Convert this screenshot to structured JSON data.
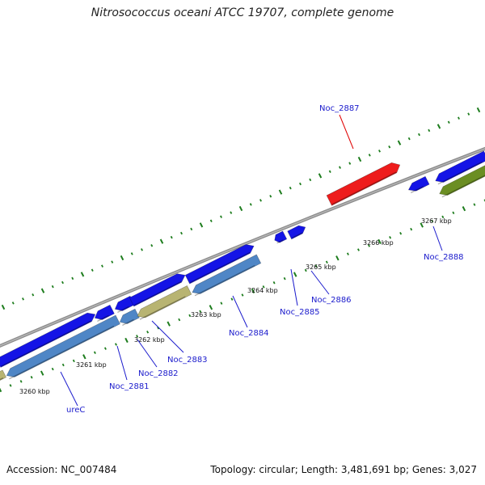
{
  "title": "Nitrosococcus oceani ATCC 19707, complete genome",
  "footer": {
    "accession": "Accession: NC_007484",
    "summary": "Topology: circular; Length: 3,481,691 bp; Genes: 3,027"
  },
  "scale_labels": [
    "3260 kbp",
    "3261 kbp",
    "3262 kbp",
    "3263 kbp",
    "3264 kbp",
    "3265 kbp",
    "3266 kbp",
    "3267 kbp"
  ],
  "gene_labels": [
    {
      "name": "ureC",
      "color": "#1a1acc"
    },
    {
      "name": "Noc_2881",
      "color": "#1a1acc"
    },
    {
      "name": "Noc_2882",
      "color": "#1a1acc"
    },
    {
      "name": "Noc_2883",
      "color": "#1a1acc"
    },
    {
      "name": "Noc_2884",
      "color": "#1a1acc"
    },
    {
      "name": "Noc_2885",
      "color": "#1a1acc"
    },
    {
      "name": "Noc_2886",
      "color": "#1a1acc"
    },
    {
      "name": "Noc_2887",
      "color": "#e00000"
    },
    {
      "name": "Noc_2888",
      "color": "#1a1acc"
    }
  ],
  "colors": {
    "backbone": "#8c8c8c",
    "forward_gene": "#1414e6",
    "reverse_gene": "#4f86c6",
    "rna_gene": "#b8b472",
    "highlight_gene": "#ee1c1c",
    "green_gene": "#6b8e23",
    "tick": "#1e7d1e"
  }
}
